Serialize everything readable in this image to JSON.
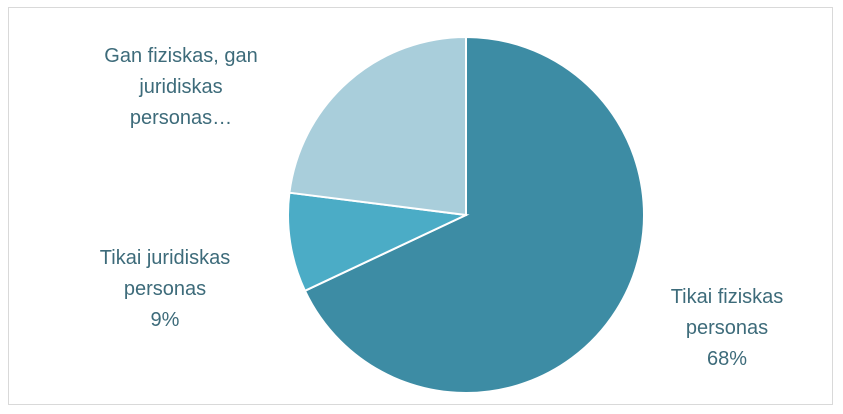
{
  "chart_data": {
    "type": "pie",
    "title": "",
    "slices": [
      {
        "label_lines": [
          "Tikai fiziskas",
          "personas",
          "68%"
        ],
        "category": "Tikai fiziskas personas",
        "value": 68,
        "value_label": "68%",
        "color": "#3d8ca4"
      },
      {
        "label_lines": [
          "Tikai juridiskas",
          "personas",
          "9%"
        ],
        "category": "Tikai juridiskas personas",
        "value": 9,
        "value_label": "9%",
        "color": "#4bacc6"
      },
      {
        "label_lines": [
          "Gan fiziskas, gan",
          "juridiskas",
          "personas…"
        ],
        "category": "Gan fiziskas, gan juridiskas personas…",
        "value": 23,
        "color": "#a9cedb"
      }
    ],
    "start_angle_deg": 0,
    "direction": "clockwise",
    "slice_border_color": "#ffffff",
    "label_color": "#3d6b7a"
  }
}
